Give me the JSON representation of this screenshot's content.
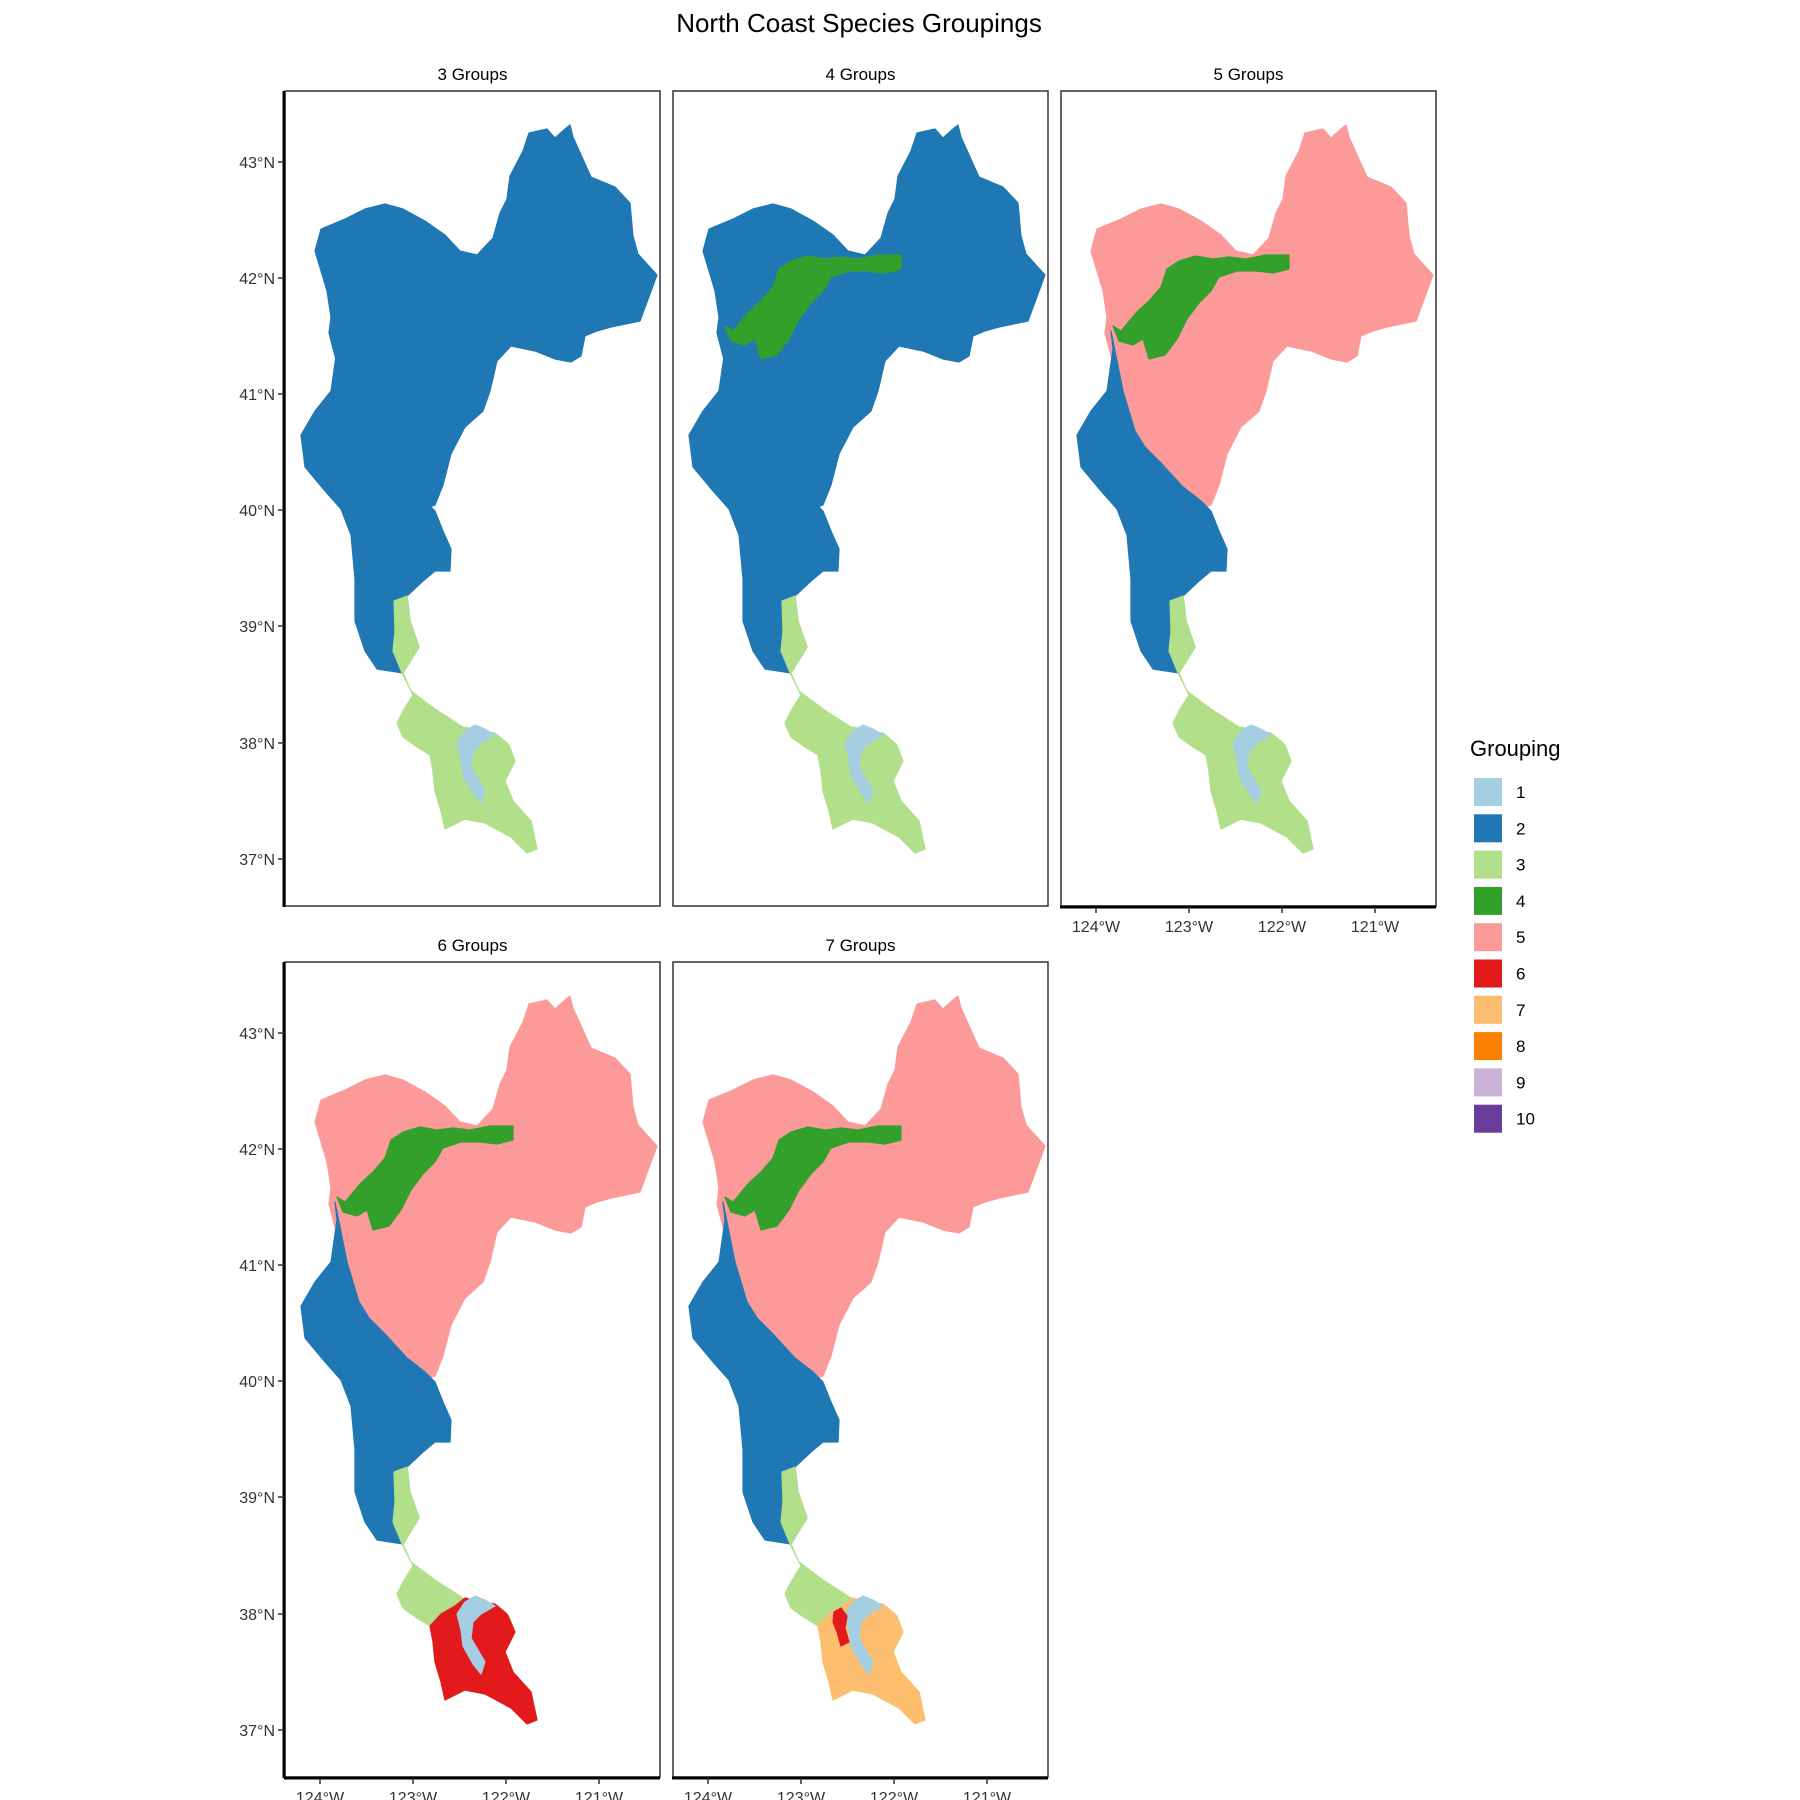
{
  "title": "North Coast Species Groupings",
  "legend": {
    "title": "Grouping",
    "items": [
      {
        "label": "1",
        "color": "#a6cee3"
      },
      {
        "label": "2",
        "color": "#1f78b4"
      },
      {
        "label": "3",
        "color": "#b2df8a"
      },
      {
        "label": "4",
        "color": "#33a02c"
      },
      {
        "label": "5",
        "color": "#fb9a99"
      },
      {
        "label": "6",
        "color": "#e31a1c"
      },
      {
        "label": "7",
        "color": "#fdbf6f"
      },
      {
        "label": "8",
        "color": "#ff7f00"
      },
      {
        "label": "9",
        "color": "#cab2d6"
      },
      {
        "label": "10",
        "color": "#6a3d9a"
      }
    ]
  },
  "axes": {
    "y_ticks": [
      "43°N",
      "42°N",
      "41°N",
      "40°N",
      "39°N",
      "38°N",
      "37°N"
    ],
    "x_ticks": [
      "124°W",
      "123°W",
      "122°W",
      "121°W"
    ]
  },
  "panels": [
    {
      "title": "3 Groups",
      "regions": {
        "north": "2",
        "coast": "2",
        "band": "2",
        "south": "3",
        "bay_area": "3",
        "bay": "1"
      }
    },
    {
      "title": "4 Groups",
      "regions": {
        "north": "2",
        "coast": "2",
        "band": "4",
        "south": "3",
        "bay_area": "3",
        "bay": "1"
      }
    },
    {
      "title": "5 Groups",
      "regions": {
        "north": "5",
        "coast": "2",
        "band": "4",
        "south": "3",
        "bay_area": "3",
        "bay": "1"
      }
    },
    {
      "title": "6 Groups",
      "regions": {
        "north": "5",
        "coast": "2",
        "band": "4",
        "south": "3",
        "bay_area": "6",
        "bay": "1"
      }
    },
    {
      "title": "7 Groups",
      "regions": {
        "north": "5",
        "coast": "2",
        "band": "4",
        "south": "3",
        "bay_area": "7",
        "bay": "1",
        "bay_spot": "6"
      }
    }
  ]
}
